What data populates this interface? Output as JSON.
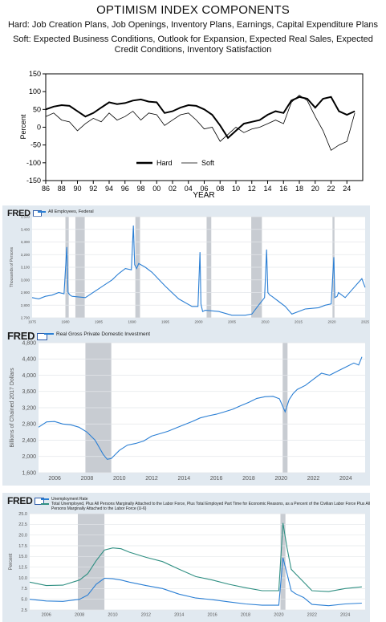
{
  "chart_data": [
    {
      "type": "line",
      "title": "OPTIMISM INDEX COMPONENTS",
      "subtitle_hard": "Hard: Job Creation Plans, Job Openings, Inventory Plans, Earnings, Capital Expenditure Plans",
      "subtitle_soft_1": "Soft: Expected Business Conditions, Outlook for Expansion, Expected Real Sales, Expected",
      "subtitle_soft_2": "Credit Conditions, Inventory Satisfaction",
      "ylabel": "Percent",
      "xlabel": "YEAR",
      "xlim": [
        1986,
        2026
      ],
      "ylim": [
        -150,
        150
      ],
      "yticks": [
        "150",
        "100",
        "50",
        "0",
        "-50",
        "-100",
        "-150"
      ],
      "ytick_values": [
        150,
        100,
        50,
        0,
        -50,
        -100,
        -150
      ],
      "xticks": [
        "86",
        "88",
        "90",
        "92",
        "94",
        "96",
        "98",
        "00",
        "02",
        "04",
        "06",
        "08",
        "10",
        "12",
        "14",
        "16",
        "18",
        "20",
        "22",
        "24"
      ],
      "legend_position": "bottom-center",
      "series": [
        {
          "name": "Hard",
          "color": "#000000",
          "x": [
            1986,
            1987,
            1988,
            1989,
            1990,
            1991,
            1992,
            1993,
            1994,
            1995,
            1996,
            1997,
            1998,
            1999,
            2000,
            2001,
            2002,
            2003,
            2004,
            2005,
            2006,
            2007,
            2008,
            2009,
            2010,
            2011,
            2012,
            2013,
            2014,
            2015,
            2016,
            2017,
            2018,
            2019,
            2020,
            2021,
            2022,
            2023,
            2024,
            2025
          ],
          "y": [
            50,
            58,
            62,
            60,
            45,
            30,
            40,
            55,
            70,
            65,
            68,
            75,
            78,
            72,
            70,
            40,
            45,
            55,
            62,
            60,
            50,
            35,
            5,
            -30,
            -10,
            10,
            15,
            20,
            35,
            45,
            40,
            75,
            85,
            80,
            55,
            80,
            85,
            45,
            35,
            45
          ]
        },
        {
          "name": "Soft",
          "color": "#000000",
          "x": [
            1986,
            1987,
            1988,
            1989,
            1990,
            1991,
            1992,
            1993,
            1994,
            1995,
            1996,
            1997,
            1998,
            1999,
            2000,
            2001,
            2002,
            2003,
            2004,
            2005,
            2006,
            2007,
            2008,
            2009,
            2010,
            2011,
            2012,
            2013,
            2014,
            2015,
            2016,
            2017,
            2018,
            2019,
            2020,
            2021,
            2022,
            2023,
            2024,
            2025
          ],
          "y": [
            30,
            40,
            20,
            15,
            -10,
            10,
            25,
            15,
            40,
            20,
            30,
            45,
            20,
            40,
            35,
            5,
            20,
            35,
            40,
            20,
            -5,
            0,
            -40,
            -20,
            0,
            -15,
            -5,
            0,
            10,
            20,
            10,
            70,
            90,
            75,
            30,
            -10,
            -65,
            -50,
            -40,
            40
          ]
        }
      ]
    },
    {
      "type": "line",
      "source": "FRED",
      "series_name": "All Employees, Federal",
      "ylabel": "Thousands of Persons",
      "xlim": [
        1975,
        2025
      ],
      "ylim": [
        2700,
        3500
      ],
      "yticks": [
        "3,500",
        "3,400",
        "3,300",
        "3,200",
        "3,100",
        "3,000",
        "2,900",
        "2,800",
        "2,700"
      ],
      "ytick_values": [
        3500,
        3400,
        3300,
        3200,
        3100,
        3000,
        2900,
        2800,
        2700
      ],
      "xticks": [
        "1975",
        "1980",
        "1985",
        "1990",
        "1995",
        "2000",
        "2005",
        "2010",
        "2015",
        "2020",
        "2025"
      ],
      "xtick_values": [
        1975,
        1980,
        1985,
        1990,
        1995,
        2000,
        2005,
        2010,
        2015,
        2020,
        2025
      ],
      "recessions": [
        [
          1980.0,
          1980.5
        ],
        [
          1981.5,
          1982.9
        ],
        [
          1990.5,
          1991.2
        ],
        [
          2001.2,
          2001.9
        ],
        [
          2007.9,
          2009.5
        ],
        [
          2020.1,
          2020.4
        ]
      ],
      "line_color": "#2b7fd4",
      "x": [
        1975,
        1976,
        1977,
        1978,
        1979,
        1979.8,
        1980.2,
        1980.4,
        1980.7,
        1981,
        1983,
        1985,
        1987,
        1988,
        1989,
        1989.9,
        1990.2,
        1990.4,
        1990.7,
        1991,
        1992,
        1993,
        1995,
        1997,
        1999,
        1999.9,
        2000.2,
        2000.35,
        2000.6,
        2001,
        2003,
        2005,
        2007,
        2008,
        2009,
        2009.9,
        2010.2,
        2010.4,
        2010.7,
        2011,
        2012,
        2013,
        2014,
        2016,
        2018,
        2019,
        2019.9,
        2020.3,
        2020.45,
        2020.8,
        2021,
        2022,
        2023,
        2024,
        2024.5,
        2025
      ],
      "y": [
        2860,
        2850,
        2870,
        2880,
        2900,
        2890,
        3260,
        2900,
        2880,
        2870,
        2860,
        2930,
        3000,
        3050,
        3090,
        3080,
        3430,
        3120,
        3090,
        3130,
        3100,
        3060,
        2950,
        2850,
        2790,
        2790,
        3220,
        2810,
        2750,
        2760,
        2750,
        2720,
        2720,
        2730,
        2800,
        2860,
        3240,
        2900,
        2880,
        2870,
        2830,
        2790,
        2730,
        2770,
        2780,
        2800,
        2810,
        3180,
        2860,
        2870,
        2900,
        2860,
        2920,
        2980,
        3010,
        2940
      ]
    },
    {
      "type": "line",
      "source": "FRED",
      "series_name": "Real Gross Private Domestic Investment",
      "ylabel": "Billions of Chained 2017 Dollars",
      "xlim": [
        2005,
        2025.2
      ],
      "ylim": [
        1600,
        4800
      ],
      "yticks": [
        "4,800",
        "4,400",
        "4,000",
        "3,600",
        "3,200",
        "2,800",
        "2,400",
        "2,000",
        "1,600"
      ],
      "ytick_values": [
        4800,
        4400,
        4000,
        3600,
        3200,
        2800,
        2400,
        2000,
        1600
      ],
      "xticks": [
        "2006",
        "2008",
        "2010",
        "2012",
        "2014",
        "2016",
        "2018",
        "2020",
        "2022",
        "2024"
      ],
      "xtick_values": [
        2006,
        2008,
        2010,
        2012,
        2014,
        2016,
        2018,
        2020,
        2022,
        2024
      ],
      "recessions": [
        [
          2007.9,
          2009.5
        ],
        [
          2020.1,
          2020.4
        ]
      ],
      "line_color": "#2b7fd4",
      "x": [
        2005,
        2005.5,
        2006,
        2006.5,
        2007,
        2007.5,
        2008,
        2008.5,
        2009,
        2009.25,
        2009.5,
        2009.75,
        2010,
        2010.5,
        2011,
        2011.5,
        2012,
        2012.5,
        2013,
        2013.5,
        2014,
        2014.5,
        2015,
        2015.5,
        2016,
        2016.5,
        2017,
        2017.5,
        2018,
        2018.5,
        2019,
        2019.5,
        2019.9,
        2020.25,
        2020.5,
        2020.75,
        2021,
        2021.5,
        2022,
        2022.5,
        2023,
        2023.5,
        2024,
        2024.5,
        2024.8,
        2025
      ],
      "y": [
        2720,
        2850,
        2860,
        2800,
        2780,
        2720,
        2600,
        2400,
        2050,
        1930,
        1950,
        2050,
        2150,
        2280,
        2320,
        2380,
        2500,
        2560,
        2620,
        2700,
        2780,
        2860,
        2950,
        3000,
        3040,
        3100,
        3160,
        3250,
        3330,
        3430,
        3470,
        3480,
        3420,
        3100,
        3400,
        3550,
        3650,
        3750,
        3900,
        4050,
        4000,
        4100,
        4200,
        4300,
        4250,
        4450
      ]
    },
    {
      "type": "line",
      "source": "FRED",
      "series": [
        {
          "name": "Unemployment Rate",
          "color": "#2b7fd4",
          "x": [
            2005,
            2006,
            2007,
            2008,
            2008.5,
            2009,
            2009.5,
            2010,
            2010.5,
            2011,
            2012,
            2013,
            2014,
            2015,
            2016,
            2017,
            2018,
            2019,
            2020.0,
            2020.25,
            2020.5,
            2020.75,
            2021,
            2021.5,
            2022,
            2023,
            2024,
            2025
          ],
          "y": [
            5.0,
            4.6,
            4.5,
            5.0,
            6.0,
            8.5,
            9.9,
            9.8,
            9.5,
            9.0,
            8.2,
            7.5,
            6.2,
            5.3,
            4.9,
            4.4,
            3.9,
            3.6,
            3.6,
            14.7,
            11.0,
            7.0,
            6.3,
            5.4,
            3.8,
            3.5,
            3.9,
            4.1
          ]
        },
        {
          "name": "Total Unemployed, Plus All Persons Marginally Attached to the Labor Force, Plus Total Employed Part Time for Economic Reasons, as a Percent of the Civilian Labor Force Plus All Persons Marginally Attached to the Labor Force (U-6)",
          "color": "#2f8f82",
          "x": [
            2005,
            2006,
            2007,
            2008,
            2008.5,
            2009,
            2009.5,
            2010,
            2010.5,
            2011,
            2012,
            2013,
            2014,
            2015,
            2016,
            2017,
            2018,
            2019,
            2020.0,
            2020.25,
            2020.5,
            2020.75,
            2021,
            2021.5,
            2022,
            2023,
            2024,
            2025
          ],
          "y": [
            9.0,
            8.2,
            8.3,
            9.5,
            11.0,
            14.0,
            16.5,
            17.0,
            16.8,
            16.0,
            14.8,
            13.8,
            12.0,
            10.3,
            9.5,
            8.5,
            7.7,
            7.0,
            7.0,
            22.8,
            17.0,
            12.0,
            11.0,
            9.0,
            7.0,
            6.8,
            7.5,
            7.9
          ]
        }
      ],
      "legend_1": "Unemployment Rate",
      "legend_2": "Total Unemployed, Plus All Persons Marginally Attached to the Labor Force, Plus Total Employed Part Time for Economic Reasons, as a Percent of the Civilian Labor Force Plus All",
      "legend_2b": "Persons Marginally Attached to the Labor Force (U-6)",
      "ylabel": "Percent",
      "xlim": [
        2005,
        2025.2
      ],
      "ylim": [
        2.5,
        25.0
      ],
      "yticks": [
        "25.0",
        "22.5",
        "20.0",
        "17.5",
        "15.0",
        "12.5",
        "10.0",
        "7.5",
        "5.0",
        "2.5"
      ],
      "ytick_values": [
        25,
        22.5,
        20,
        17.5,
        15,
        12.5,
        10,
        7.5,
        5,
        2.5
      ],
      "xticks": [
        "2006",
        "2008",
        "2010",
        "2012",
        "2014",
        "2016",
        "2018",
        "2020",
        "2022",
        "2024"
      ],
      "xtick_values": [
        2006,
        2008,
        2010,
        2012,
        2014,
        2016,
        2018,
        2020,
        2022,
        2024
      ],
      "recessions": [
        [
          2007.9,
          2009.5
        ],
        [
          2020.1,
          2020.4
        ]
      ]
    }
  ],
  "fred_logo": "FRED",
  "colors": {
    "fred_bg": "#e1e9f0",
    "fred_line": "#2b7fd4",
    "recession": "#c8ccd2",
    "u6": "#2f8f82"
  }
}
